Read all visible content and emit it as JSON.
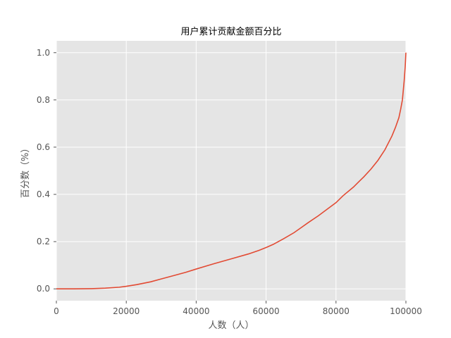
{
  "chart_data": {
    "type": "line",
    "title": "用户累计贡献金额百分比",
    "xlabel": "人数（人）",
    "ylabel": "百分数（%）",
    "xlim": [
      0,
      100000
    ],
    "ylim": [
      -0.05,
      1.05
    ],
    "xticks": [
      0,
      20000,
      40000,
      60000,
      80000,
      100000
    ],
    "xtick_labels": [
      "0",
      "20000",
      "40000",
      "60000",
      "80000",
      "100000"
    ],
    "yticks": [
      0.0,
      0.2,
      0.4,
      0.6,
      0.8,
      1.0
    ],
    "ytick_labels": [
      "0.0",
      "0.2",
      "0.4",
      "0.6",
      "0.8",
      "1.0"
    ],
    "grid": true,
    "colors": {
      "background": "#e5e5e5",
      "grid": "#ffffff",
      "line": "#e24a33"
    },
    "series": [
      {
        "x": [
          0,
          5000,
          10000,
          14000,
          18000,
          20000,
          23000,
          27000,
          30000,
          33000,
          37000,
          40000,
          45000,
          50000,
          55000,
          58000,
          60000,
          62000,
          65000,
          68000,
          70000,
          72000,
          75000,
          78000,
          80000,
          82000,
          85000,
          88000,
          90000,
          92000,
          94000,
          96000,
          97000,
          98000,
          98500,
          99000,
          99500,
          99800,
          100000
        ],
        "y": [
          0.0,
          0.0,
          0.001,
          0.003,
          0.007,
          0.011,
          0.018,
          0.03,
          0.042,
          0.054,
          0.07,
          0.084,
          0.106,
          0.127,
          0.148,
          0.163,
          0.175,
          0.188,
          0.212,
          0.238,
          0.259,
          0.28,
          0.31,
          0.343,
          0.365,
          0.394,
          0.431,
          0.475,
          0.507,
          0.544,
          0.589,
          0.647,
          0.683,
          0.725,
          0.76,
          0.8,
          0.88,
          0.94,
          1.0
        ]
      }
    ]
  }
}
